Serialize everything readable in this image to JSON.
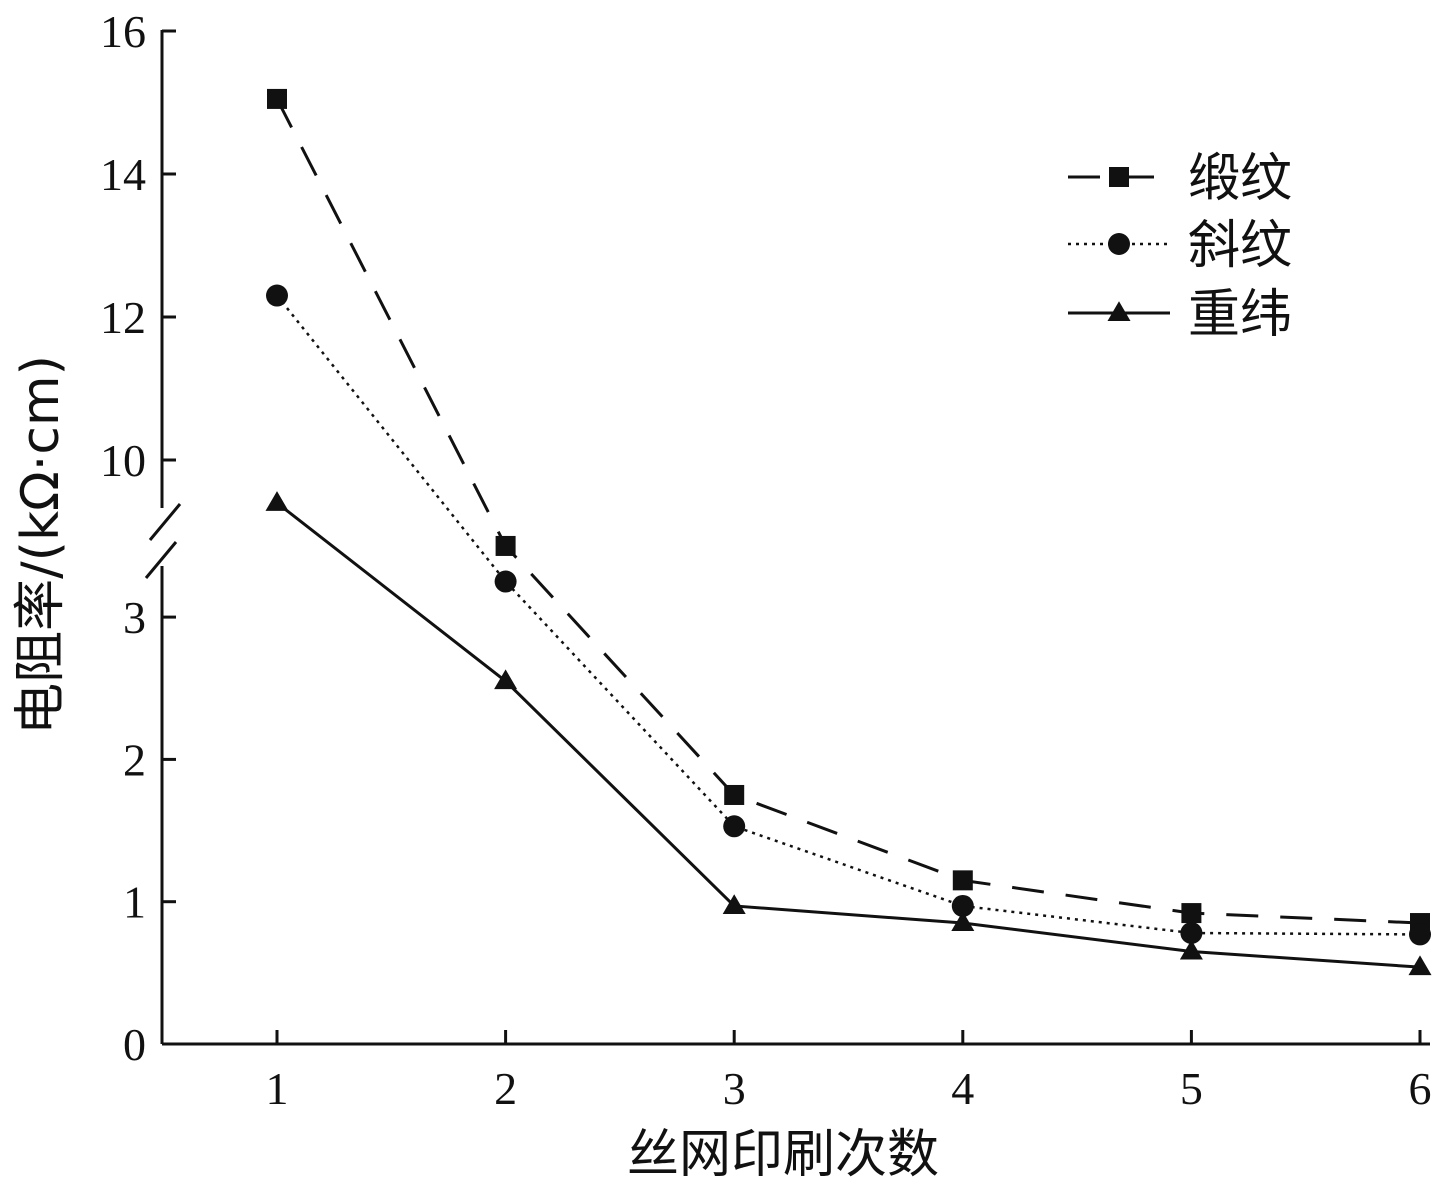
{
  "chart_data": {
    "type": "line",
    "xlabel": "丝网印刷次数",
    "ylabel": "电阻率/(kΩ·cm)",
    "x": [
      1,
      2,
      3,
      4,
      5,
      6
    ],
    "x_ticks": [
      "1",
      "2",
      "3",
      "4",
      "5",
      "6"
    ],
    "y_ticks_lower": [
      "0",
      "1",
      "2",
      "3"
    ],
    "y_ticks_upper": [
      "10",
      "12",
      "14",
      "16"
    ],
    "axis_break": {
      "lower_range": [
        0,
        3.5
      ],
      "upper_range": [
        9,
        16
      ]
    },
    "grid": false,
    "legend_position": "top-right",
    "series": [
      {
        "name": "缎纹",
        "line_style": "dashed",
        "marker": "square",
        "values": [
          15.05,
          3.5,
          1.75,
          1.15,
          0.92,
          0.85
        ]
      },
      {
        "name": "斜纹",
        "line_style": "dotted",
        "marker": "circle",
        "values": [
          12.3,
          3.25,
          1.53,
          0.97,
          0.78,
          0.77
        ]
      },
      {
        "name": "重纬",
        "line_style": "solid",
        "marker": "triangle",
        "values": [
          9.4,
          2.55,
          0.97,
          0.85,
          0.65,
          0.54
        ]
      }
    ],
    "colors": {
      "line": "#111111",
      "background": "#ffffff"
    }
  }
}
